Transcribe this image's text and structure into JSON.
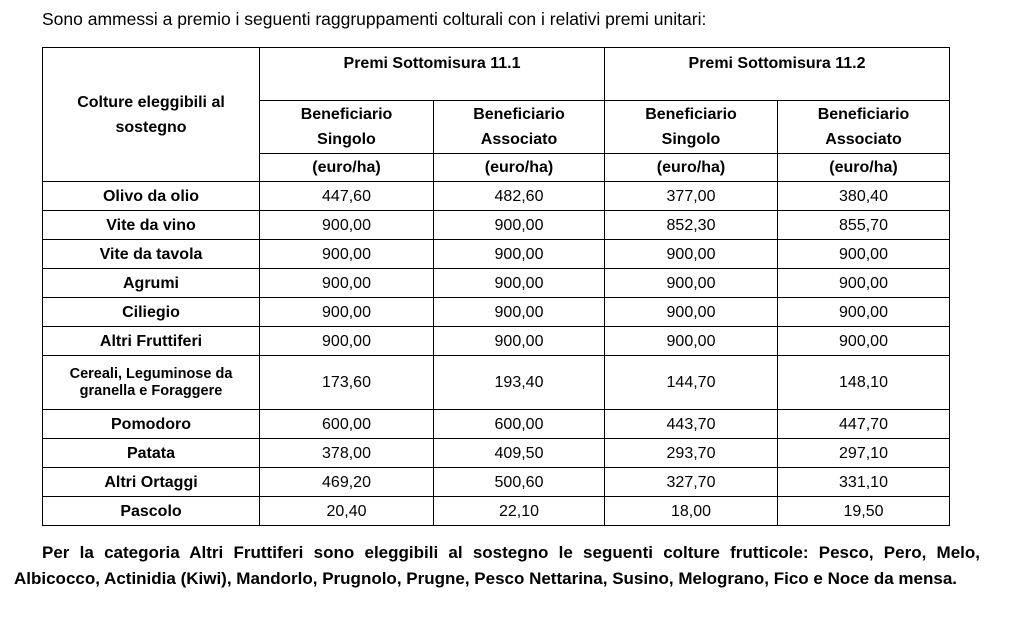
{
  "intro": "Sono ammessi a premio i seguenti raggruppamenti colturali con i relativi premi unitari:",
  "table": {
    "col_crop": "Colture eleggibili al sostegno",
    "group1": "Premi Sottomisura 11.1",
    "group2": "Premi Sottomisura 11.2",
    "sub": [
      "Beneficiario Singolo",
      "Beneficiario Associato",
      "Beneficiario Singolo",
      "Beneficiario Associato"
    ],
    "unit": [
      "(euro/ha)",
      "(euro/ha)",
      "(euro/ha)",
      "(euro/ha)"
    ],
    "rows": [
      {
        "crop": "Olivo da olio",
        "values": [
          "447,60",
          "482,60",
          "377,00",
          "380,40"
        ]
      },
      {
        "crop": "Vite da vino",
        "values": [
          "900,00",
          "900,00",
          "852,30",
          "855,70"
        ]
      },
      {
        "crop": "Vite da tavola",
        "values": [
          "900,00",
          "900,00",
          "900,00",
          "900,00"
        ]
      },
      {
        "crop": "Agrumi",
        "values": [
          "900,00",
          "900,00",
          "900,00",
          "900,00"
        ]
      },
      {
        "crop": "Ciliegio",
        "values": [
          "900,00",
          "900,00",
          "900,00",
          "900,00"
        ]
      },
      {
        "crop": "Altri Fruttiferi",
        "values": [
          "900,00",
          "900,00",
          "900,00",
          "900,00"
        ]
      },
      {
        "crop": "Cereali, Leguminose da granella e Foraggere",
        "values": [
          "173,60",
          "193,40",
          "144,70",
          "148,10"
        ]
      },
      {
        "crop": "Pomodoro",
        "values": [
          "600,00",
          "600,00",
          "443,70",
          "447,70"
        ]
      },
      {
        "crop": "Patata",
        "values": [
          "378,00",
          "409,50",
          "293,70",
          "297,10"
        ]
      },
      {
        "crop": "Altri Ortaggi",
        "values": [
          "469,20",
          "500,60",
          "327,70",
          "331,10"
        ]
      },
      {
        "crop": "Pascolo",
        "values": [
          "20,40",
          "22,10",
          "18,00",
          "19,50"
        ]
      }
    ]
  },
  "footnote": "Per la categoria Altri Fruttiferi sono eleggibili al sostegno le seguenti colture frutticole: Pesco, Pero, Melo, Albicocco, Actinidia (Kiwi), Mandorlo, Prugnolo, Prugne, Pesco Nettarina, Susino, Melograno, Fico e Noce da mensa."
}
